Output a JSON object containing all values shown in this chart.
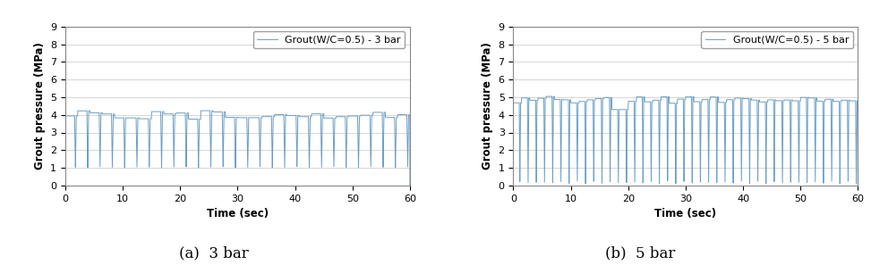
{
  "subplot1": {
    "legend_label": "Grout(W/C=0.5) - 3 bar",
    "xlabel": "Time (sec)",
    "ylabel": "Grout pressure (MPa)",
    "xlim": [
      0,
      60
    ],
    "ylim": [
      0,
      9
    ],
    "yticks": [
      0,
      1,
      2,
      3,
      4,
      5,
      6,
      7,
      8,
      9
    ],
    "xticks": [
      0,
      10,
      20,
      30,
      40,
      50,
      60
    ],
    "caption": "(a)  3 bar",
    "base_pressure": 4.0,
    "drop_min": 1.0,
    "num_cycles": 28,
    "line_color": "#6A9EC5"
  },
  "subplot2": {
    "legend_label": "Grout(W/C=0.5) - 5 bar",
    "xlabel": "Time (sec)",
    "ylabel": "Grout pressure (MPa)",
    "xlim": [
      0,
      60
    ],
    "ylim": [
      0,
      9
    ],
    "yticks": [
      0,
      1,
      2,
      3,
      4,
      5,
      6,
      7,
      8,
      9
    ],
    "xticks": [
      0,
      10,
      20,
      30,
      40,
      50,
      60
    ],
    "caption": "(b)  5 bar",
    "base_pressure": 4.8,
    "drop_min": 0.1,
    "num_cycles": 42,
    "line_color": "#6A9EC5"
  },
  "figure_bg": "#ffffff",
  "axes_bg": "#ffffff",
  "grid_color": "#d0d0d0",
  "grid_linewidth": 0.6,
  "line_linewidth": 0.7,
  "caption_fontsize": 12,
  "label_fontsize": 8.5,
  "tick_fontsize": 8,
  "legend_fontsize": 8
}
